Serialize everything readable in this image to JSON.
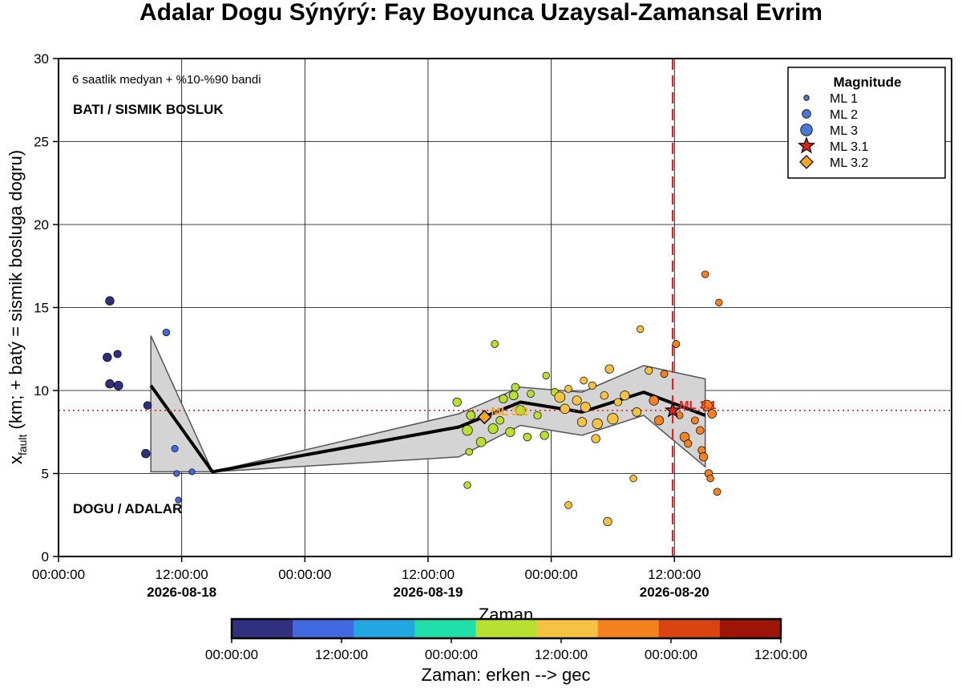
{
  "chart_data": {
    "type": "scatter",
    "title": "Adalar Dogu Sýnýrý: Fay Boyunca Uzaysal-Zamansal Evrim",
    "xlabel": "Zaman",
    "ylabel_main": "x",
    "ylabel_sub": "fault",
    "ylabel_rest": " (km; + batý = sismik bosluga dogru)",
    "x_start": "2026-08-17 00:00:00",
    "x_end": "2026-08-20 15:00:00",
    "ylim": [
      0,
      30
    ],
    "y_ticks": [
      0,
      5,
      10,
      15,
      20,
      25,
      30
    ],
    "x_ticks": [
      {
        "t": "2026-08-17 00:00:00",
        "label": "00:00:00",
        "date": ""
      },
      {
        "t": "2026-08-17 12:00:00",
        "label": "12:00:00",
        "date": "2026-08-18"
      },
      {
        "t": "2026-08-18 00:00:00",
        "label": "00:00:00",
        "date": ""
      },
      {
        "t": "2026-08-18 12:00:00",
        "label": "12:00:00",
        "date": "2026-08-19"
      },
      {
        "t": "2026-08-19 00:00:00",
        "label": "00:00:00",
        "date": ""
      },
      {
        "t": "2026-08-19 12:00:00",
        "label": "12:00:00",
        "date": "2026-08-20"
      }
    ],
    "grid": true,
    "note": "6 saatlik medyan + %10-%90 bandi",
    "region_top": "BATI / SISMIK BOSLUK",
    "region_bottom": "DOGU / ADALAR",
    "reference_y": 8.8,
    "mainshock_time": "2026-08-19 11:50:00",
    "median_line": [
      {
        "t": "2026-08-17 09:00:00",
        "y": 10.3
      },
      {
        "t": "2026-08-17 15:00:00",
        "y": 5.1
      },
      {
        "t": "2026-08-18 15:00:00",
        "y": 7.8
      },
      {
        "t": "2026-08-18 21:00:00",
        "y": 9.3
      },
      {
        "t": "2026-08-19 03:00:00",
        "y": 8.7
      },
      {
        "t": "2026-08-19 09:00:00",
        "y": 9.9
      },
      {
        "t": "2026-08-19 15:00:00",
        "y": 8.5
      }
    ],
    "band_p90": [
      13.3,
      5.1,
      8.6,
      10.2,
      9.9,
      11.5,
      10.7
    ],
    "band_p10": [
      5.1,
      5.1,
      6.0,
      7.9,
      7.3,
      8.5,
      5.4
    ],
    "legend_title": "Magnitude",
    "legend_position": "top-right",
    "legend": [
      {
        "label": "ML 1",
        "kind": "circle",
        "mag": 1
      },
      {
        "label": "ML 2",
        "kind": "circle",
        "mag": 2
      },
      {
        "label": "ML 3",
        "kind": "circle",
        "mag": 3
      },
      {
        "label": "ML 3.1",
        "kind": "star",
        "mag": 3.1
      },
      {
        "label": "ML 3.2",
        "kind": "diamond",
        "mag": 3.2
      }
    ],
    "special_events": [
      {
        "kind": "diamond",
        "t": "2026-08-18 17:30:00",
        "y": 8.4,
        "mag": 3.2,
        "label": "ML 3.2",
        "color": "#f5a623"
      },
      {
        "kind": "star",
        "t": "2026-08-19 11:50:00",
        "y": 8.8,
        "mag": 3.1,
        "label": "ML 3.1",
        "color": "#e0201b"
      }
    ],
    "colorbar": {
      "label": "Zaman: erken --> gec",
      "colors": [
        "#30307f",
        "#4169e1",
        "#22a7e0",
        "#1fe0a8",
        "#b8e030",
        "#f5c242",
        "#f5821f",
        "#d9440f",
        "#9e1508"
      ],
      "tick_labels": [
        "00:00:00",
        "12:00:00",
        "00:00:00",
        "12:00:00",
        "00:00:00",
        "12:00:00"
      ]
    },
    "events": [
      {
        "t": "2026-08-17 05:00:00",
        "y": 15.4,
        "mag": 2.0
      },
      {
        "t": "2026-08-17 05:45:00",
        "y": 12.2,
        "mag": 1.7
      },
      {
        "t": "2026-08-17 04:45:00",
        "y": 12.0,
        "mag": 2.0
      },
      {
        "t": "2026-08-17 05:00:00",
        "y": 10.4,
        "mag": 2.0
      },
      {
        "t": "2026-08-17 05:50:00",
        "y": 10.3,
        "mag": 2.1
      },
      {
        "t": "2026-08-17 08:40:00",
        "y": 9.1,
        "mag": 1.8
      },
      {
        "t": "2026-08-17 08:30:00",
        "y": 6.2,
        "mag": 2.0
      },
      {
        "t": "2026-08-17 10:30:00",
        "y": 13.5,
        "mag": 1.5
      },
      {
        "t": "2026-08-17 11:20:00",
        "y": 6.5,
        "mag": 1.4
      },
      {
        "t": "2026-08-17 11:30:00",
        "y": 5.0,
        "mag": 1.2
      },
      {
        "t": "2026-08-17 11:40:00",
        "y": 3.4,
        "mag": 1.2
      },
      {
        "t": "2026-08-17 13:00:00",
        "y": 5.1,
        "mag": 1.2
      },
      {
        "t": "2026-08-18 14:50:00",
        "y": 9.3,
        "mag": 2.0
      },
      {
        "t": "2026-08-18 15:50:00",
        "y": 7.6,
        "mag": 2.5
      },
      {
        "t": "2026-08-18 16:00:00",
        "y": 6.3,
        "mag": 1.5
      },
      {
        "t": "2026-08-18 16:10:00",
        "y": 8.5,
        "mag": 2.1
      },
      {
        "t": "2026-08-18 15:50:00",
        "y": 4.3,
        "mag": 1.5
      },
      {
        "t": "2026-08-18 17:10:00",
        "y": 6.9,
        "mag": 2.3
      },
      {
        "t": "2026-08-18 18:20:00",
        "y": 7.7,
        "mag": 2.4
      },
      {
        "t": "2026-08-18 18:30:00",
        "y": 12.8,
        "mag": 1.6
      },
      {
        "t": "2026-08-18 19:00:00",
        "y": 8.2,
        "mag": 1.8
      },
      {
        "t": "2026-08-18 19:20:00",
        "y": 9.5,
        "mag": 2.0
      },
      {
        "t": "2026-08-18 20:00:00",
        "y": 7.5,
        "mag": 2.2
      },
      {
        "t": "2026-08-18 20:20:00",
        "y": 9.7,
        "mag": 2.1
      },
      {
        "t": "2026-08-18 20:30:00",
        "y": 10.2,
        "mag": 1.8
      },
      {
        "t": "2026-08-18 21:00:00",
        "y": 8.8,
        "mag": 2.4
      },
      {
        "t": "2026-08-18 21:40:00",
        "y": 7.2,
        "mag": 1.8
      },
      {
        "t": "2026-08-18 22:00:00",
        "y": 9.8,
        "mag": 1.6
      },
      {
        "t": "2026-08-18 22:40:00",
        "y": 8.5,
        "mag": 1.7
      },
      {
        "t": "2026-08-18 23:20:00",
        "y": 7.3,
        "mag": 2.0
      },
      {
        "t": "2026-08-18 23:30:00",
        "y": 10.9,
        "mag": 1.5
      },
      {
        "t": "2026-08-19 00:20:00",
        "y": 9.9,
        "mag": 1.7
      },
      {
        "t": "2026-08-19 00:50:00",
        "y": 9.6,
        "mag": 2.6
      },
      {
        "t": "2026-08-19 01:20:00",
        "y": 8.9,
        "mag": 2.3
      },
      {
        "t": "2026-08-19 01:40:00",
        "y": 10.1,
        "mag": 1.6
      },
      {
        "t": "2026-08-19 01:40:00",
        "y": 3.1,
        "mag": 1.6
      },
      {
        "t": "2026-08-19 02:30:00",
        "y": 9.4,
        "mag": 2.2
      },
      {
        "t": "2026-08-19 03:00:00",
        "y": 8.1,
        "mag": 2.2
      },
      {
        "t": "2026-08-19 03:10:00",
        "y": 10.6,
        "mag": 1.6
      },
      {
        "t": "2026-08-19 03:20:00",
        "y": 9.0,
        "mag": 2.4
      },
      {
        "t": "2026-08-19 04:00:00",
        "y": 10.3,
        "mag": 1.7
      },
      {
        "t": "2026-08-19 04:20:00",
        "y": 7.1,
        "mag": 2.0
      },
      {
        "t": "2026-08-19 04:30:00",
        "y": 8.0,
        "mag": 2.5
      },
      {
        "t": "2026-08-19 05:10:00",
        "y": 9.7,
        "mag": 1.8
      },
      {
        "t": "2026-08-19 05:30:00",
        "y": 2.1,
        "mag": 2.0
      },
      {
        "t": "2026-08-19 05:40:00",
        "y": 11.3,
        "mag": 2.0
      },
      {
        "t": "2026-08-19 06:00:00",
        "y": 8.3,
        "mag": 2.7
      },
      {
        "t": "2026-08-19 06:30:00",
        "y": 9.3,
        "mag": 1.7
      },
      {
        "t": "2026-08-19 07:10:00",
        "y": 9.7,
        "mag": 2.2
      },
      {
        "t": "2026-08-19 08:00:00",
        "y": 4.7,
        "mag": 1.5
      },
      {
        "t": "2026-08-19 08:20:00",
        "y": 8.7,
        "mag": 2.1
      },
      {
        "t": "2026-08-19 08:40:00",
        "y": 13.7,
        "mag": 1.5
      },
      {
        "t": "2026-08-19 09:30:00",
        "y": 11.2,
        "mag": 1.7
      },
      {
        "t": "2026-08-19 10:00:00",
        "y": 9.4,
        "mag": 2.3
      },
      {
        "t": "2026-08-19 10:30:00",
        "y": 8.2,
        "mag": 2.2
      },
      {
        "t": "2026-08-19 11:00:00",
        "y": 11.0,
        "mag": 1.6
      },
      {
        "t": "2026-08-19 12:10:00",
        "y": 12.8,
        "mag": 1.6
      },
      {
        "t": "2026-08-19 12:30:00",
        "y": 8.5,
        "mag": 1.5
      },
      {
        "t": "2026-08-19 13:00:00",
        "y": 7.2,
        "mag": 2.3
      },
      {
        "t": "2026-08-19 13:20:00",
        "y": 6.8,
        "mag": 1.7
      },
      {
        "t": "2026-08-19 14:00:00",
        "y": 8.2,
        "mag": 1.6
      },
      {
        "t": "2026-08-19 14:30:00",
        "y": 7.6,
        "mag": 1.8
      },
      {
        "t": "2026-08-19 14:40:00",
        "y": 6.4,
        "mag": 1.7
      },
      {
        "t": "2026-08-19 14:50:00",
        "y": 6.0,
        "mag": 2.0
      },
      {
        "t": "2026-08-19 15:10:00",
        "y": 9.1,
        "mag": 2.6
      },
      {
        "t": "2026-08-19 15:00:00",
        "y": 17.0,
        "mag": 1.5
      },
      {
        "t": "2026-08-19 15:20:00",
        "y": 5.0,
        "mag": 1.8
      },
      {
        "t": "2026-08-19 15:30:00",
        "y": 4.7,
        "mag": 1.5
      },
      {
        "t": "2026-08-19 15:40:00",
        "y": 8.6,
        "mag": 2.1
      },
      {
        "t": "2026-08-19 16:10:00",
        "y": 3.9,
        "mag": 1.6
      },
      {
        "t": "2026-08-19 16:20:00",
        "y": 15.3,
        "mag": 1.5
      }
    ]
  }
}
